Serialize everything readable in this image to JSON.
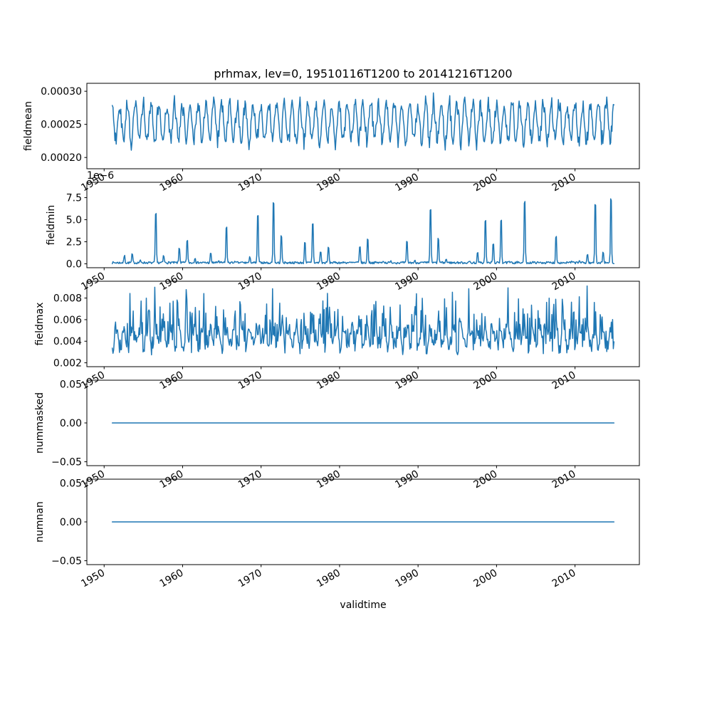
{
  "figure": {
    "background": "#ffffff"
  },
  "chart_data": {
    "type": "line",
    "title": "prhmax, lev=0, 19510116T1200 to 20141216T1200",
    "xlabel": "validtime",
    "line_color": "#1f77b4",
    "x_axis": {
      "lim": [
        1947.8,
        2018.2
      ],
      "ticks": [
        1950,
        1960,
        1970,
        1980,
        1990,
        2000,
        2010
      ],
      "tick_labels": [
        "1950",
        "1960",
        "1970",
        "1980",
        "1990",
        "2000",
        "2010"
      ],
      "data_start": 1951.042,
      "data_end": 2014.958,
      "points_per_year": 12,
      "n_points": 768
    },
    "subplots": [
      {
        "ylabel": "fieldmean",
        "ylim": [
          0.000183,
          0.000312
        ],
        "yticks": [
          0.0002,
          0.00025,
          0.0003
        ],
        "ytick_labels": [
          "0.00020",
          "0.00025",
          "0.00030"
        ],
        "offset_text": "",
        "series": {
          "kind": "seasonal",
          "seed": 42,
          "base": 0.000253,
          "amp": 2.8e-05,
          "amp_jitter": 0.5,
          "noise": 2.2e-05,
          "phase": 2.0,
          "clamp": [
            0.000186,
            0.000308
          ]
        }
      },
      {
        "ylabel": "fieldmin",
        "ylim": [
          -4.4e-07,
          9.24e-06
        ],
        "yticks": [
          0,
          2.5e-06,
          5e-06,
          7.5e-06
        ],
        "ytick_labels": [
          "0.0",
          "2.5",
          "5.0",
          "7.5"
        ],
        "offset_text": "1e−6",
        "series": {
          "kind": "spikes",
          "seed": 7,
          "max_amp": 9e-06,
          "amp_pow": 3.5,
          "sharpness": 6,
          "peak_month": 6.5,
          "base_noise": 2.5e-07,
          "clamp": [
            0,
            8.8e-06
          ]
        }
      },
      {
        "ylabel": "fieldmax",
        "ylim": [
          0.00164,
          0.00956
        ],
        "yticks": [
          0.002,
          0.004,
          0.006,
          0.008
        ],
        "ytick_labels": [
          "0.002",
          "0.004",
          "0.006",
          "0.008"
        ],
        "offset_text": "",
        "series": {
          "kind": "spiky_band",
          "seed": 13,
          "base": 0.0042,
          "season_amp": 0.0009,
          "peak_month": 6,
          "spike": 0.004,
          "spike_pow": 5,
          "noise": 0.0012,
          "clamp": [
            0.002,
            0.0092
          ]
        }
      },
      {
        "ylabel": "nummasked",
        "ylim": [
          -0.055,
          0.055
        ],
        "yticks": [
          -0.05,
          0,
          0.05
        ],
        "ytick_labels": [
          "−0.05",
          "0.00",
          "0.05"
        ],
        "offset_text": "",
        "series": {
          "kind": "constant",
          "value": 0
        }
      },
      {
        "ylabel": "numnan",
        "ylim": [
          -0.055,
          0.055
        ],
        "yticks": [
          -0.05,
          0,
          0.05
        ],
        "ytick_labels": [
          "−0.05",
          "0.00",
          "0.05"
        ],
        "offset_text": "",
        "series": {
          "kind": "constant",
          "value": 0
        }
      }
    ]
  }
}
